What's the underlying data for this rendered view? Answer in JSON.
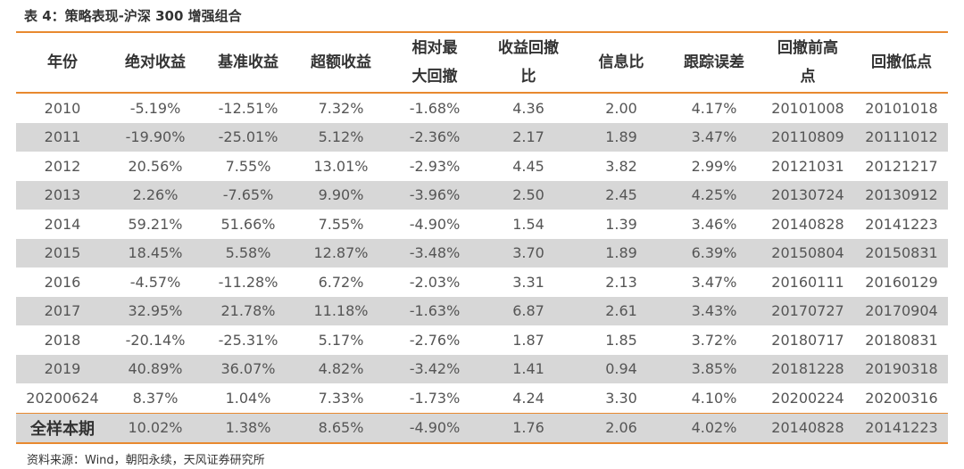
{
  "caption": "表 4：策略表现-沪深 300 增强组合",
  "table": {
    "headers": [
      "年份",
      "绝对收益",
      "基准收益",
      "超额收益",
      "相对最大回撤",
      "收益回撤比",
      "信息比",
      "跟踪误差",
      "回撤前高点",
      "回撤低点"
    ],
    "rows": [
      [
        "2010",
        "-5.19%",
        "-12.51%",
        "7.32%",
        "-1.68%",
        "4.36",
        "2.00",
        "4.17%",
        "20101008",
        "20101018"
      ],
      [
        "2011",
        "-19.90%",
        "-25.01%",
        "5.12%",
        "-2.36%",
        "2.17",
        "1.89",
        "3.47%",
        "20110809",
        "20111012"
      ],
      [
        "2012",
        "20.56%",
        "7.55%",
        "13.01%",
        "-2.93%",
        "4.45",
        "3.82",
        "2.99%",
        "20121031",
        "20121217"
      ],
      [
        "2013",
        "2.26%",
        "-7.65%",
        "9.90%",
        "-3.96%",
        "2.50",
        "2.45",
        "4.25%",
        "20130724",
        "20130912"
      ],
      [
        "2014",
        "59.21%",
        "51.66%",
        "7.55%",
        "-4.90%",
        "1.54",
        "1.39",
        "3.46%",
        "20140828",
        "20141223"
      ],
      [
        "2015",
        "18.45%",
        "5.58%",
        "12.87%",
        "-3.48%",
        "3.70",
        "1.89",
        "6.39%",
        "20150804",
        "20150831"
      ],
      [
        "2016",
        "-4.57%",
        "-11.28%",
        "6.72%",
        "-2.03%",
        "3.31",
        "2.13",
        "3.47%",
        "20160111",
        "20160129"
      ],
      [
        "2017",
        "32.95%",
        "21.78%",
        "11.18%",
        "-1.63%",
        "6.87",
        "2.61",
        "3.43%",
        "20170727",
        "20170904"
      ],
      [
        "2018",
        "-20.14%",
        "-25.31%",
        "5.17%",
        "-2.76%",
        "1.87",
        "1.85",
        "3.72%",
        "20180717",
        "20180831"
      ],
      [
        "2019",
        "40.89%",
        "36.07%",
        "4.82%",
        "-3.42%",
        "1.41",
        "0.94",
        "3.85%",
        "20181228",
        "20190318"
      ],
      [
        "20200624",
        "8.37%",
        "1.04%",
        "7.33%",
        "-1.73%",
        "4.24",
        "3.30",
        "4.10%",
        "20200224",
        "20200316"
      ],
      [
        "全样本期",
        "10.02%",
        "1.38%",
        "8.65%",
        "-4.90%",
        "1.76",
        "2.06",
        "4.02%",
        "20140828",
        "20141223"
      ]
    ]
  },
  "source": "资料来源：Wind，朝阳永续，天风证券研究所",
  "colors": {
    "accent": "#e8892f",
    "shade": "#d7d7d7"
  }
}
